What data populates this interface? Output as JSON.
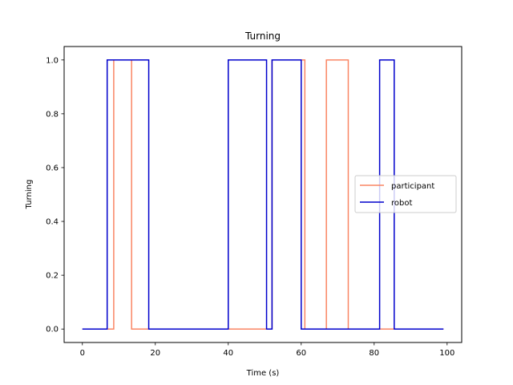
{
  "chart_data": {
    "type": "line",
    "title": "Turning",
    "xlabel": "Time (s)",
    "ylabel": "Turning",
    "xlim": [
      -5,
      104
    ],
    "ylim": [
      -0.05,
      1.05
    ],
    "xticks": [
      0,
      20,
      40,
      60,
      80,
      100
    ],
    "yticks": [
      0.0,
      0.2,
      0.4,
      0.6,
      0.8,
      1.0
    ],
    "xtick_labels": [
      "0",
      "20",
      "40",
      "60",
      "80",
      "100"
    ],
    "ytick_labels": [
      "0.0",
      "0.2",
      "0.4",
      "0.6",
      "0.8",
      "1.0"
    ],
    "grid": false,
    "legend_position": "center-right",
    "step": "post",
    "series": [
      {
        "name": "participant",
        "color": "#fa8564",
        "x": [
          0,
          8.6,
          13.5,
          52.0,
          61.0,
          66.9,
          72.9,
          99
        ],
        "y": [
          0,
          1,
          0,
          1,
          0,
          1,
          0,
          0
        ]
      },
      {
        "name": "robot",
        "color": "#0000cc",
        "x": [
          0,
          6.8,
          18.2,
          40.0,
          50.5,
          52.0,
          60.0,
          81.5,
          85.5,
          99
        ],
        "y": [
          0,
          1,
          0,
          1,
          0,
          1,
          0,
          1,
          0,
          0
        ]
      }
    ]
  }
}
